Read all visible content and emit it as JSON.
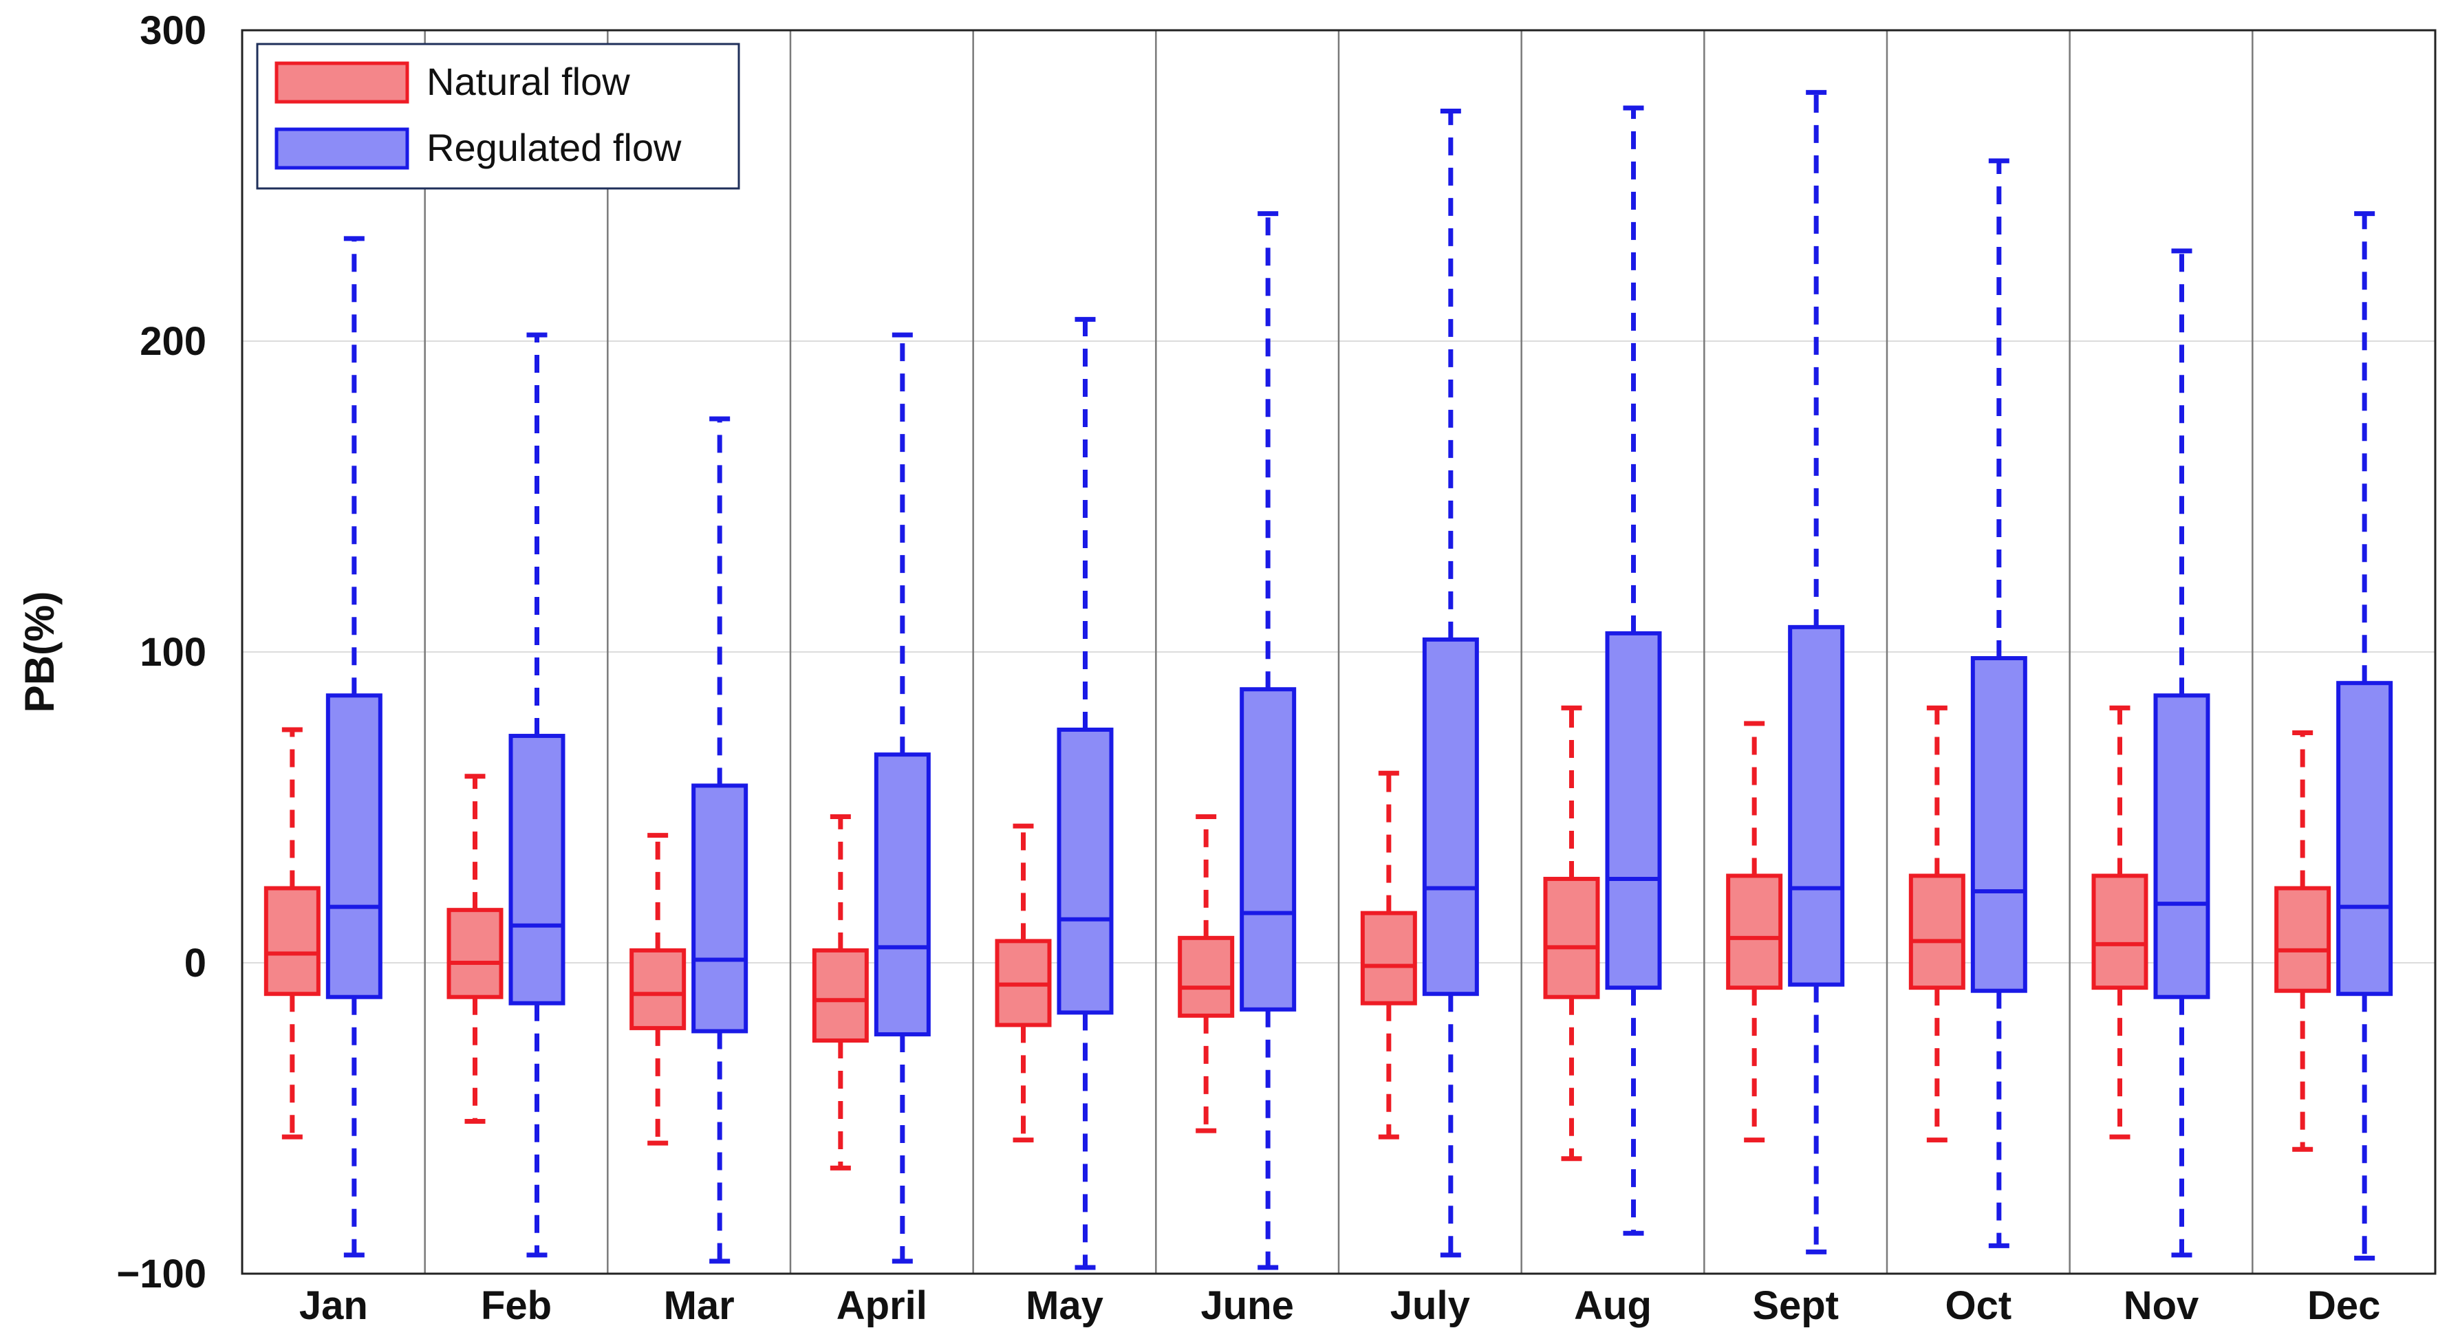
{
  "chart_data": {
    "type": "boxplot",
    "title": "",
    "xlabel": "",
    "ylabel": "PB(%)",
    "ylim": [
      -100,
      300
    ],
    "yticks": [
      -100,
      0,
      100,
      200,
      300
    ],
    "ytick_labels": [
      "−100",
      "0",
      "100",
      "200",
      "300"
    ],
    "grid": true,
    "legend_position": "top-left",
    "categories": [
      "Jan",
      "Feb",
      "Mar",
      "April",
      "May",
      "June",
      "July",
      "Aug",
      "Sept",
      "Oct",
      "Nov",
      "Dec"
    ],
    "series": [
      {
        "name": "Natural flow",
        "color": "#ee1c25",
        "fill": "#f4868a",
        "min": [
          -56,
          -51,
          -58,
          -66,
          -57,
          -54,
          -56,
          -63,
          -57,
          -57,
          -56,
          -60
        ],
        "q1": [
          -10,
          -11,
          -21,
          -25,
          -20,
          -17,
          -13,
          -11,
          -8,
          -8,
          -8,
          -9
        ],
        "median": [
          3,
          0,
          -10,
          -12,
          -7,
          -8,
          -1,
          5,
          8,
          7,
          6,
          4
        ],
        "q3": [
          24,
          17,
          4,
          4,
          7,
          8,
          16,
          27,
          28,
          28,
          28,
          24
        ],
        "max": [
          75,
          60,
          41,
          47,
          44,
          47,
          61,
          82,
          77,
          82,
          82,
          74
        ]
      },
      {
        "name": "Regulated flow",
        "color": "#1a1ae6",
        "fill": "#8c8cf7",
        "min": [
          -94,
          -94,
          -96,
          -96,
          -98,
          -98,
          -94,
          -87,
          -93,
          -91,
          -94,
          -95
        ],
        "q1": [
          -11,
          -13,
          -22,
          -23,
          -16,
          -15,
          -10,
          -8,
          -7,
          -9,
          -11,
          -10
        ],
        "median": [
          18,
          12,
          1,
          5,
          14,
          16,
          24,
          27,
          24,
          23,
          19,
          18
        ],
        "q3": [
          86,
          73,
          57,
          67,
          75,
          88,
          104,
          106,
          108,
          98,
          86,
          90
        ],
        "max": [
          233,
          202,
          175,
          202,
          207,
          241,
          274,
          275,
          280,
          258,
          229,
          241
        ]
      }
    ]
  }
}
